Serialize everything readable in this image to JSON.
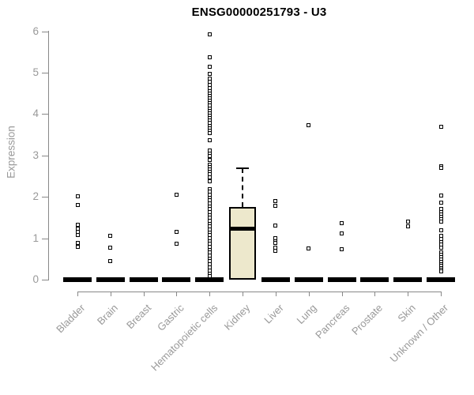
{
  "chart_data": {
    "type": "boxplot",
    "title": "ENSG00000251793 - U3",
    "ylabel": "Expression",
    "xlabel": "",
    "ylim": [
      0,
      6
    ],
    "yticks": [
      0,
      1,
      2,
      3,
      4,
      5,
      6
    ],
    "legend": "none",
    "grid": false,
    "colors": {
      "title_text": "#000000",
      "axis_text": "#999999",
      "axis_line": "#888888",
      "point_outline": "#000000",
      "box_fill": "#EDE8CC",
      "box_border": "#000000",
      "median_line": "#000000",
      "background": "#ffffff"
    },
    "categories": [
      {
        "label": "Bladder",
        "zero_bar": true,
        "box": null,
        "points": [
          2.02,
          1.81,
          1.33,
          1.24,
          1.15,
          1.08,
          0.88,
          0.8
        ]
      },
      {
        "label": "Brain",
        "zero_bar": true,
        "box": null,
        "points": [
          1.05,
          0.78,
          0.45
        ]
      },
      {
        "label": "Breast",
        "zero_bar": true,
        "box": null,
        "points": []
      },
      {
        "label": "Gastric",
        "zero_bar": true,
        "box": null,
        "points": [
          2.06,
          1.16,
          0.87
        ]
      },
      {
        "label": "Hematopoietic cells",
        "zero_bar": true,
        "box": null,
        "points": [
          5.92,
          5.37,
          5.15,
          4.98,
          4.85,
          4.78,
          4.7,
          4.62,
          4.56,
          4.5,
          4.44,
          4.38,
          4.32,
          4.26,
          4.2,
          4.14,
          4.08,
          4.02,
          3.96,
          3.9,
          3.84,
          3.78,
          3.72,
          3.66,
          3.6,
          3.54,
          3.37,
          3.12,
          3.05,
          2.98,
          2.9,
          2.78,
          2.72,
          2.66,
          2.6,
          2.54,
          2.48,
          2.38,
          2.19,
          2.12,
          2.05,
          1.98,
          1.91,
          1.84,
          1.77,
          1.7,
          1.63,
          1.56,
          1.49,
          1.42,
          1.35,
          1.28,
          1.21,
          1.14,
          1.07,
          1.0,
          0.93,
          0.86,
          0.79,
          0.72,
          0.65,
          0.58,
          0.51,
          0.44,
          0.37,
          0.3,
          0.22,
          0.15,
          0.08
        ]
      },
      {
        "label": "Kidney",
        "zero_bar": false,
        "box": {
          "q1": 0,
          "median": 1.25,
          "q3": 1.75,
          "whisker_low": 0,
          "whisker_high": 2.7
        },
        "points": []
      },
      {
        "label": "Liver",
        "zero_bar": true,
        "box": null,
        "points": [
          1.9,
          1.79,
          1.31,
          1.01,
          0.93,
          0.88,
          0.78,
          0.7
        ]
      },
      {
        "label": "Lung",
        "zero_bar": true,
        "box": null,
        "points": [
          3.73,
          0.76
        ]
      },
      {
        "label": "Pancreas",
        "zero_bar": true,
        "box": null,
        "points": [
          1.37,
          1.12,
          0.74
        ]
      },
      {
        "label": "Prostate",
        "zero_bar": true,
        "box": null,
        "points": []
      },
      {
        "label": "Skin",
        "zero_bar": true,
        "box": null,
        "points": [
          1.41,
          1.28
        ]
      },
      {
        "label": "Unknown / Other",
        "zero_bar": true,
        "box": null,
        "points": [
          3.7,
          2.73,
          2.7,
          2.04,
          1.86,
          1.7,
          1.64,
          1.58,
          1.52,
          1.46,
          1.4,
          1.2,
          1.05,
          0.98,
          0.9,
          0.84,
          0.78,
          0.66,
          0.6,
          0.54,
          0.48,
          0.43,
          0.38,
          0.33,
          0.28,
          0.24,
          0.2
        ]
      }
    ]
  }
}
